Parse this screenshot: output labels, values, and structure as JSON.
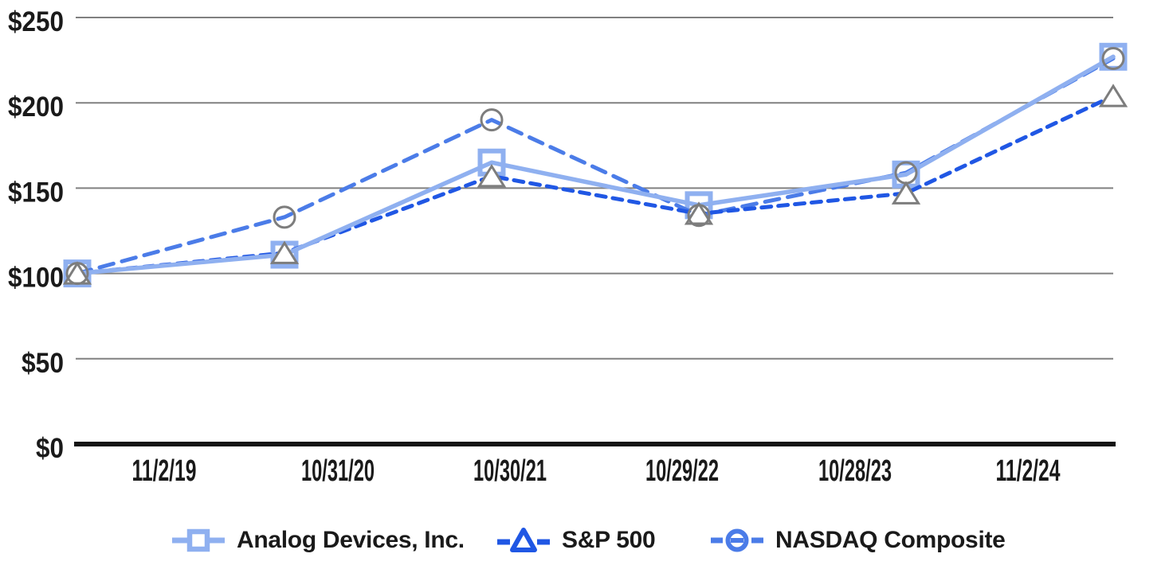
{
  "chart_data": {
    "type": "line",
    "x_categories": [
      "11/2/19",
      "10/31/20",
      "10/30/21",
      "10/29/22",
      "10/28/23",
      "11/2/24"
    ],
    "y_ticks": [
      {
        "label": "$0",
        "value": 0
      },
      {
        "label": "$50",
        "value": 50
      },
      {
        "label": "$100",
        "value": 100
      },
      {
        "label": "$150",
        "value": 150
      },
      {
        "label": "$200",
        "value": 200
      },
      {
        "label": "$250",
        "value": 250
      }
    ],
    "ylim": [
      0,
      250
    ],
    "grid": true,
    "legend_position": "bottom",
    "currency_prefix": "$",
    "axis_color": "#141414",
    "gridline_color": "#808080",
    "label_color": "#1a1a1a",
    "series": [
      {
        "name": "Analog Devices, Inc.",
        "marker": "square",
        "line_style": "solid",
        "color": "#8FB0F0",
        "marker_color": "#8FB0F0",
        "values": [
          100,
          111,
          165,
          140,
          158,
          227
        ]
      },
      {
        "name": "S&P 500",
        "marker": "triangle",
        "line_style": "dashed",
        "color": "#2057E4",
        "marker_color": "#7D7D7D",
        "values": [
          100,
          112,
          157,
          135,
          147,
          204
        ]
      },
      {
        "name": "NASDAQ Composite",
        "marker": "circle",
        "line_style": "dashed",
        "color": "#4B7CE8",
        "marker_color": "#7D7D7D",
        "values": [
          100,
          133,
          190,
          134,
          159,
          226
        ]
      }
    ]
  }
}
